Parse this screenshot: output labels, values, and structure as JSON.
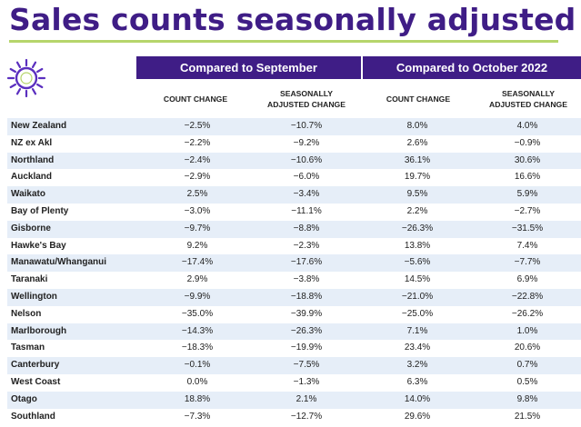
{
  "title": "Sales counts seasonally adjusted",
  "colors": {
    "title": "#3f1d86",
    "header_bg": "#3f1d86",
    "rule": "#b6d56b",
    "row_shade": "#e6eef8",
    "logo": "#5b2fbf"
  },
  "logo_icon": "sun-logo-icon",
  "groups": {
    "september": "Compared to September",
    "october": "Compared to October 2022"
  },
  "columns": {
    "c1": [
      "COUNT CHANGE"
    ],
    "c2": [
      "SEASONALLY",
      "ADJUSTED CHANGE"
    ],
    "c3": [
      "COUNT CHANGE"
    ],
    "c4": [
      "SEASONALLY",
      "ADJUSTED CHANGE"
    ]
  },
  "rows": [
    {
      "region": "New Zealand",
      "v": [
        "−2.5%",
        "−10.7%",
        "8.0%",
        "4.0%"
      ]
    },
    {
      "region": "NZ ex Akl",
      "v": [
        "−2.2%",
        "−9.2%",
        "2.6%",
        "−0.9%"
      ]
    },
    {
      "region": "Northland",
      "v": [
        "−2.4%",
        "−10.6%",
        "36.1%",
        "30.6%"
      ]
    },
    {
      "region": "Auckland",
      "v": [
        "−2.9%",
        "−6.0%",
        "19.7%",
        "16.6%"
      ]
    },
    {
      "region": "Waikato",
      "v": [
        "2.5%",
        "−3.4%",
        "9.5%",
        "5.9%"
      ]
    },
    {
      "region": "Bay of Plenty",
      "v": [
        "−3.0%",
        "−11.1%",
        "2.2%",
        "−2.7%"
      ]
    },
    {
      "region": "Gisborne",
      "v": [
        "−9.7%",
        "−8.8%",
        "−26.3%",
        "−31.5%"
      ]
    },
    {
      "region": "Hawke's Bay",
      "v": [
        "9.2%",
        "−2.3%",
        "13.8%",
        "7.4%"
      ]
    },
    {
      "region": "Manawatu/Whanganui",
      "v": [
        "−17.4%",
        "−17.6%",
        "−5.6%",
        "−7.7%"
      ]
    },
    {
      "region": "Taranaki",
      "v": [
        "2.9%",
        "−3.8%",
        "14.5%",
        "6.9%"
      ]
    },
    {
      "region": "Wellington",
      "v": [
        "−9.9%",
        "−18.8%",
        "−21.0%",
        "−22.8%"
      ]
    },
    {
      "region": "Nelson",
      "v": [
        "−35.0%",
        "−39.9%",
        "−25.0%",
        "−26.2%"
      ]
    },
    {
      "region": "Marlborough",
      "v": [
        "−14.3%",
        "−26.3%",
        "7.1%",
        "1.0%"
      ]
    },
    {
      "region": "Tasman",
      "v": [
        "−18.3%",
        "−19.9%",
        "23.4%",
        "20.6%"
      ]
    },
    {
      "region": "Canterbury",
      "v": [
        "−0.1%",
        "−7.5%",
        "3.2%",
        "0.7%"
      ]
    },
    {
      "region": "West Coast",
      "v": [
        "0.0%",
        "−1.3%",
        "6.3%",
        "0.5%"
      ]
    },
    {
      "region": "Otago",
      "v": [
        "18.8%",
        "2.1%",
        "14.0%",
        "9.8%"
      ]
    },
    {
      "region": "Southland",
      "v": [
        "−7.3%",
        "−12.7%",
        "29.6%",
        "21.5%"
      ]
    }
  ]
}
